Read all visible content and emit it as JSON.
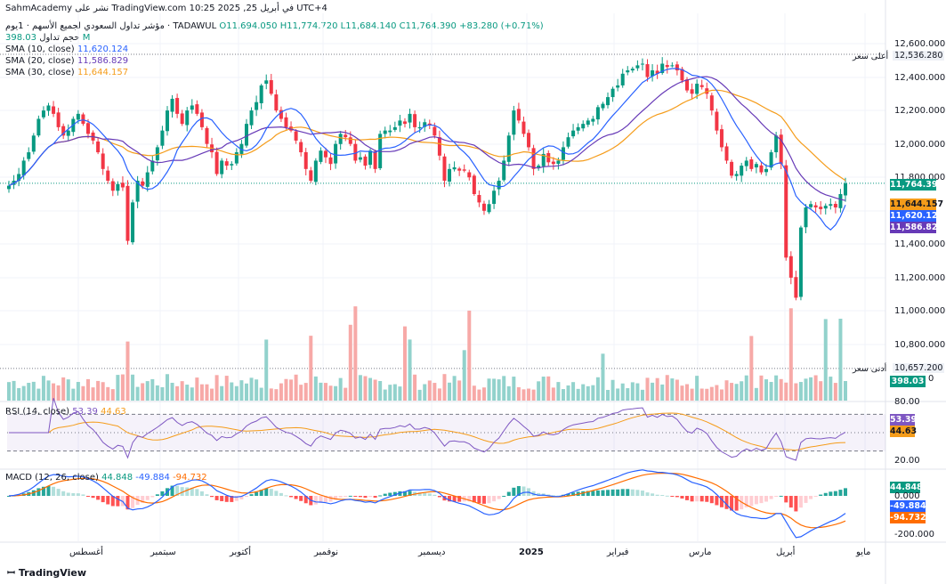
{
  "top_bar": {
    "published_text": "SahmAcademy نشر على TradingView.com في أبريل 25, 2025 10:25 UTC+4"
  },
  "symbol_line": {
    "name": "مؤشر تداول السعودي لجميع الأسهم · 1يوم · TADAWUL",
    "O": "O11,694.050",
    "H": "H11,774.720",
    "L": "L11,684.140",
    "C": "C11,764.390",
    "change": "+83.280 (+0.71%)"
  },
  "volume_line": {
    "label": "حجم تداول",
    "value": "398.03 M"
  },
  "sma_lines": [
    {
      "label": "SMA (10, close)",
      "value": "11,620.124",
      "color": "#2962ff"
    },
    {
      "label": "SMA (20, close)",
      "value": "11,586.829",
      "color": "#673ab7"
    },
    {
      "label": "SMA (30, close)",
      "value": "11,644.157",
      "color": "#f59c1a"
    }
  ],
  "colors": {
    "up": "#089981",
    "down": "#f23645",
    "up_vol": "#92d2cc",
    "down_vol": "#f7a9a7",
    "rsi": "#7e57c2",
    "rsi_ma": "#f59c1a",
    "macd": "#2962ff",
    "signal": "#ff6d00"
  },
  "price_axis": [
    "12,600.000",
    "12,400.000",
    "12,200.000",
    "12,000.000",
    "11,800.000",
    "11,400.000",
    "11,200.000",
    "11,000.000",
    "10,800.000"
  ],
  "markers": {
    "high": {
      "label": "أعلى سعر",
      "value": "12,536.280"
    },
    "low": {
      "label": "أدنى سعر",
      "value": "10,657.200"
    }
  },
  "price_badges": {
    "last": "11,764.390",
    "sma30": "11,644.157",
    "sma10": "11,620.124",
    "sma20": "11,586.829",
    "volume": "398.03 M",
    "zero_label": "0"
  },
  "rsi": {
    "label": "RSI (14, close)",
    "value": "53.39",
    "ma_value": "44.63",
    "axis": [
      "80.00",
      "20.00"
    ]
  },
  "macd": {
    "label": "MACD (12, 26, close)",
    "hist": "44.848",
    "macd_value": "-49.884",
    "signal_value": "-94.732",
    "axis": [
      "0.000",
      "-200.000"
    ]
  },
  "time_axis": [
    "أغسطس",
    "سبتمبر",
    "أكتوبر",
    "نوفمبر",
    "ديسمبر",
    "2025",
    "فبراير",
    "مارس",
    "أبريل",
    "مايو"
  ],
  "footer": "TradingView",
  "chart_data": {
    "type": "candlestick",
    "symbol": "TADAWUL",
    "price_range": [
      10600,
      12700
    ],
    "closes": [
      11750,
      11780,
      11820,
      11900,
      11950,
      12050,
      12150,
      12200,
      12230,
      12180,
      12100,
      12050,
      12080,
      12150,
      12180,
      12120,
      12060,
      12020,
      11950,
      11850,
      11780,
      11720,
      11760,
      11740,
      11420,
      11650,
      11780,
      11750,
      11830,
      11900,
      11980,
      12080,
      12200,
      12270,
      12180,
      12120,
      12200,
      12230,
      12180,
      12100,
      12000,
      11950,
      11820,
      11900,
      11870,
      11880,
      11950,
      12000,
      12120,
      12200,
      12250,
      12350,
      12380,
      12300,
      12200,
      12150,
      12100,
      12080,
      12020,
      11950,
      11850,
      11780,
      11900,
      11960,
      11920,
      11880,
      12000,
      12060,
      12040,
      12000,
      11900,
      11920,
      11870,
      11960,
      11850,
      12060,
      12080,
      12080,
      12100,
      12140,
      12120,
      12180,
      12100,
      12100,
      12130,
      12110,
      12050,
      11930,
      11780,
      11850,
      11860,
      11840,
      11840,
      11800,
      11700,
      11650,
      11600,
      11640,
      11720,
      11780,
      11900,
      12050,
      12200,
      12140,
      12060,
      11980,
      11850,
      11870,
      11940,
      11890,
      11880,
      11900,
      11980,
      12040,
      12080,
      12100,
      12120,
      12140,
      12150,
      12220,
      12240,
      12280,
      12330,
      12350,
      12420,
      12440,
      12450,
      12470,
      12480,
      12400,
      12440,
      12420,
      12480,
      12460,
      12470,
      12440,
      12380,
      12320,
      12300,
      12360,
      12340,
      12300,
      12200,
      12080,
      11980,
      11900,
      11810,
      11820,
      11870,
      11900,
      11850,
      11880,
      11830,
      11850,
      11950,
      12050,
      11880,
      11320,
      11200,
      11080,
      11500,
      11620,
      11640,
      11620,
      11610,
      11630,
      11640,
      11620,
      11700,
      11764
    ],
    "volume_last": 398.03,
    "indicators": {
      "SMA10_last": 11620.124,
      "SMA20_last": 11586.829,
      "SMA30_last": 11644.157,
      "RSI14_last": 53.39,
      "RSI_MA_last": 44.63,
      "rsi_levels": [
        70,
        30
      ],
      "MACD_hist_last": 44.848,
      "MACD_last": -49.884,
      "Signal_last": -94.732
    },
    "xlabel": "",
    "ylabel": ""
  }
}
